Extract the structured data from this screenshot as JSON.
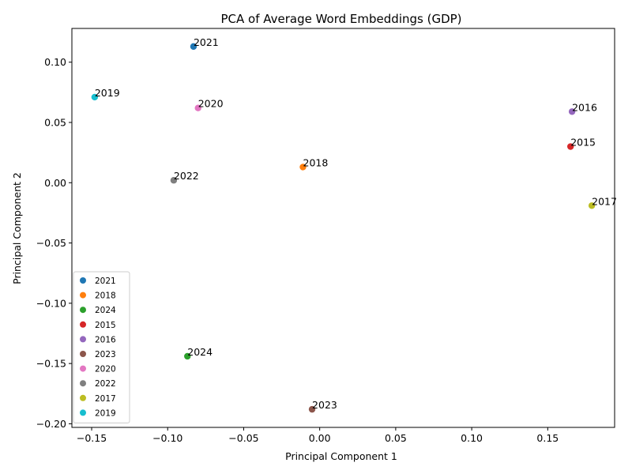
{
  "chart_data": {
    "type": "scatter",
    "title": "PCA of Average Word Embeddings (GDP)",
    "xlabel": "Principal Component 1",
    "ylabel": "Principal Component 2",
    "xlim": [
      -0.163,
      0.194
    ],
    "ylim": [
      -0.203,
      0.128
    ],
    "xticks": [
      -0.15,
      -0.1,
      -0.05,
      0.0,
      0.05,
      0.1,
      0.15
    ],
    "xtick_labels": [
      "−0.15",
      "−0.10",
      "−0.05",
      "0.00",
      "0.05",
      "0.10",
      "0.15"
    ],
    "yticks": [
      -0.2,
      -0.15,
      -0.1,
      -0.05,
      0.0,
      0.05,
      0.1
    ],
    "ytick_labels": [
      "−0.20",
      "−0.15",
      "−0.10",
      "−0.05",
      "0.00",
      "0.05",
      "0.10"
    ],
    "grid": false,
    "legend_position": "lower-left",
    "series": [
      {
        "name": "2021",
        "x": -0.083,
        "y": 0.113,
        "label": "2021",
        "color": "#1f77b4"
      },
      {
        "name": "2018",
        "x": -0.011,
        "y": 0.013,
        "label": "2018",
        "color": "#ff7f0e"
      },
      {
        "name": "2024",
        "x": -0.087,
        "y": -0.144,
        "label": "2024",
        "color": "#2ca02c"
      },
      {
        "name": "2015",
        "x": 0.165,
        "y": 0.03,
        "label": "2015",
        "color": "#d62728"
      },
      {
        "name": "2016",
        "x": 0.166,
        "y": 0.059,
        "label": "2016",
        "color": "#9467bd"
      },
      {
        "name": "2023",
        "x": -0.005,
        "y": -0.188,
        "label": "2023",
        "color": "#8c564b"
      },
      {
        "name": "2020",
        "x": -0.08,
        "y": 0.062,
        "label": "2020",
        "color": "#e377c2"
      },
      {
        "name": "2022",
        "x": -0.096,
        "y": 0.002,
        "label": "2022",
        "color": "#7f7f7f"
      },
      {
        "name": "2017",
        "x": 0.179,
        "y": -0.019,
        "label": "2017",
        "color": "#bcbd22"
      },
      {
        "name": "2019",
        "x": -0.148,
        "y": 0.071,
        "label": "2019",
        "color": "#17becf"
      }
    ]
  }
}
